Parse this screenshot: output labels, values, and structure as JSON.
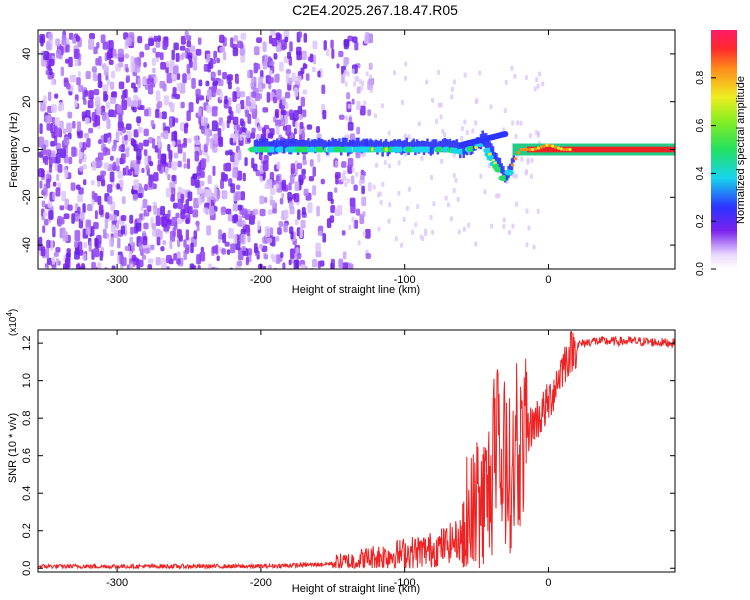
{
  "title": "C2E4.2025.267.18.47.R05",
  "colorbar": {
    "label": "Normalized spectral amplitude",
    "ticks": [
      "0.0",
      "0.2",
      "0.4",
      "0.6",
      "0.8"
    ],
    "tick_values": [
      0.0,
      0.2,
      0.4,
      0.6,
      0.8
    ],
    "range": [
      0,
      1
    ]
  },
  "colors": {
    "snr_line": "#ee2222",
    "spectrogram_noise": "#7a22ee"
  },
  "chart_data": [
    {
      "type": "heatmap",
      "xlabel": "Height of straight line (km)",
      "ylabel": "Frequency (Hz)",
      "xlim": [
        -355,
        88
      ],
      "ylim": [
        -50,
        50
      ],
      "xticks": [
        -300,
        -200,
        -100,
        0
      ],
      "xtick_labels": [
        "-300",
        "-200",
        "-100",
        "0"
      ],
      "yticks": [
        -40,
        -20,
        0,
        20,
        40
      ],
      "ytick_labels": [
        "-40",
        "-20",
        "0",
        "20",
        "40"
      ],
      "description_points": {
        "signal_track_x": [
          -205,
          -180,
          -150,
          -120,
          -90,
          -70,
          -60,
          -50,
          -45,
          -40,
          -35,
          -30,
          -20,
          -10,
          0,
          10,
          30,
          60,
          88
        ],
        "signal_track_y": [
          0,
          0,
          0,
          0,
          0,
          0,
          -1,
          1,
          4,
          -3,
          -8,
          -13,
          0,
          0,
          2,
          0,
          0,
          0,
          0
        ],
        "noise_extent_x": [
          -355,
          -145
        ]
      }
    },
    {
      "type": "line",
      "xlabel": "Height of straight line (km)",
      "ylabel": "SNR (10 * v/v)",
      "y_multiplier": "(x10",
      "y_multiplier_exp": "4",
      "xlim": [
        -355,
        88
      ],
      "ylim": [
        -0.02,
        1.27
      ],
      "xticks": [
        -300,
        -200,
        -100,
        0
      ],
      "xtick_labels": [
        "-300",
        "-200",
        "-100",
        "0"
      ],
      "yticks": [
        0.0,
        0.2,
        0.4,
        0.6,
        0.8,
        1.0,
        1.2
      ],
      "ytick_labels": [
        "0.0",
        "0.2",
        "0.4",
        "0.6",
        "0.8",
        "1.0",
        "1.2"
      ],
      "series": [
        {
          "x": [
            -355,
            -300,
            -250,
            -200,
            -160,
            -140,
            -120,
            -100,
            -80,
            -60,
            -50,
            -45,
            -40,
            -35,
            -30,
            -25,
            -20,
            -15,
            -10,
            -5,
            0,
            5,
            10,
            15,
            20,
            30,
            40,
            60,
            88
          ],
          "y": [
            0.01,
            0.01,
            0.01,
            0.01,
            0.02,
            0.03,
            0.06,
            0.08,
            0.1,
            0.16,
            0.26,
            0.33,
            0.45,
            0.55,
            0.5,
            0.5,
            0.62,
            0.72,
            0.78,
            0.82,
            0.88,
            0.98,
            1.08,
            1.15,
            1.19,
            1.21,
            1.21,
            1.21,
            1.2
          ]
        }
      ]
    }
  ]
}
